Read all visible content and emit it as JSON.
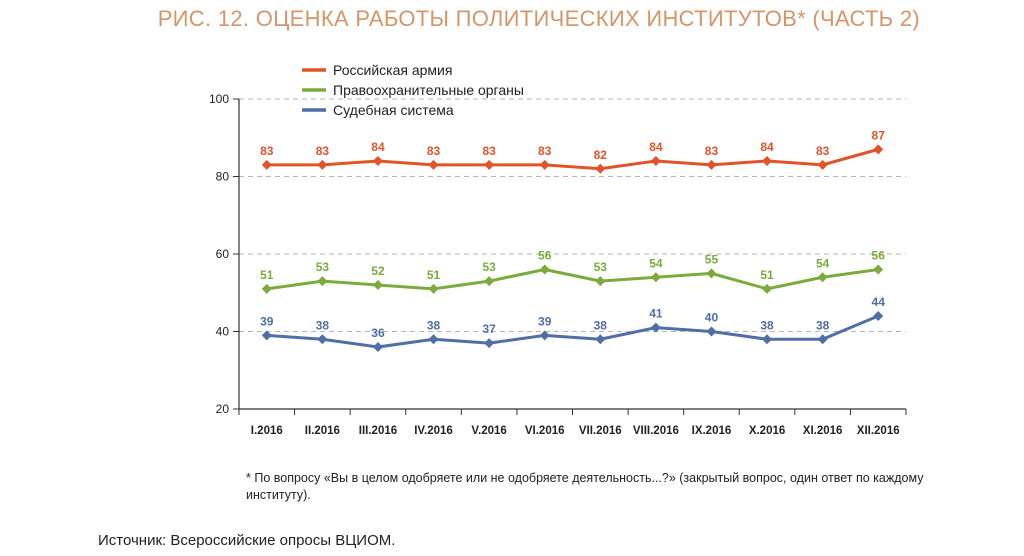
{
  "chart_data": {
    "type": "line",
    "title": "РИС. 12. ОЦЕНКА РАБОТЫ ПОЛИТИЧЕСКИХ ИНСТИТУТОВ* (ЧАСТЬ 2)",
    "categories": [
      "I.2016",
      "II.2016",
      "III.2016",
      "IV.2016",
      "V.2016",
      "VI.2016",
      "VII.2016",
      "VIII.2016",
      "IX.2016",
      "X.2016",
      "XI.2016",
      "XII.2016"
    ],
    "series": [
      {
        "name": "Российская армия",
        "color": "#e0542a",
        "values": [
          83,
          83,
          84,
          83,
          83,
          83,
          82,
          84,
          83,
          84,
          83,
          87
        ]
      },
      {
        "name": "Правоохранительные органы",
        "color": "#7aab3c",
        "values": [
          51,
          53,
          52,
          51,
          53,
          56,
          53,
          54,
          55,
          51,
          54,
          56
        ]
      },
      {
        "name": "Судебная система",
        "color": "#4f6fa6",
        "values": [
          39,
          38,
          36,
          38,
          37,
          39,
          38,
          41,
          40,
          38,
          38,
          44
        ]
      }
    ],
    "ylim": [
      20,
      100
    ],
    "yticks": [
      "20",
      "40",
      "60",
      "80",
      "100"
    ],
    "grid": "dashed horizontal",
    "legend": "top-left"
  },
  "footnote": "* По вопросу «Вы в целом одобряете или не одобряете деятельность...?» (закрытый вопрос, один ответ по каждому институту).",
  "source": "Источник: Всероссийские опросы ВЦИОМ."
}
